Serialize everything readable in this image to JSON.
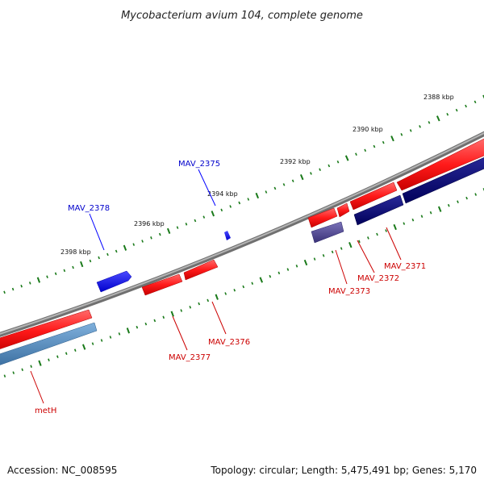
{
  "title": "Mycobacterium avium 104, complete genome",
  "footer": {
    "accession": "Accession: NC_008595",
    "summary": "Topology: circular; Length: 5,475,491 bp; Genes: 5,170"
  },
  "colors": {
    "backbone": "#8c8c8c",
    "ticks": "#1a7a1a",
    "forward_gene": "#ff1a1a",
    "reverse_gene_label": "#cc0000",
    "navy_gene": "#00006e",
    "steel_gene": "#4a82b4",
    "slate_gene": "#50468c",
    "blue_gene": "#0000ff",
    "forward_label": "#0000cc"
  },
  "scale": {
    "unit": "kbp",
    "labels": [
      "2388 kbp",
      "2390 kbp",
      "2392 kbp",
      "2394 kbp",
      "2396 kbp",
      "2398 kbp"
    ]
  },
  "genes": {
    "outer": [
      {
        "label": "MAV_2375",
        "color_key": "blue_gene"
      },
      {
        "label": "MAV_2378",
        "color_key": "blue_gene"
      }
    ],
    "inner": [
      {
        "label": "MAV_2371"
      },
      {
        "label": "MAV_2372"
      },
      {
        "label": "MAV_2373"
      },
      {
        "label": "MAV_2376"
      },
      {
        "label": "MAV_2377"
      },
      {
        "label": "metH"
      }
    ]
  }
}
